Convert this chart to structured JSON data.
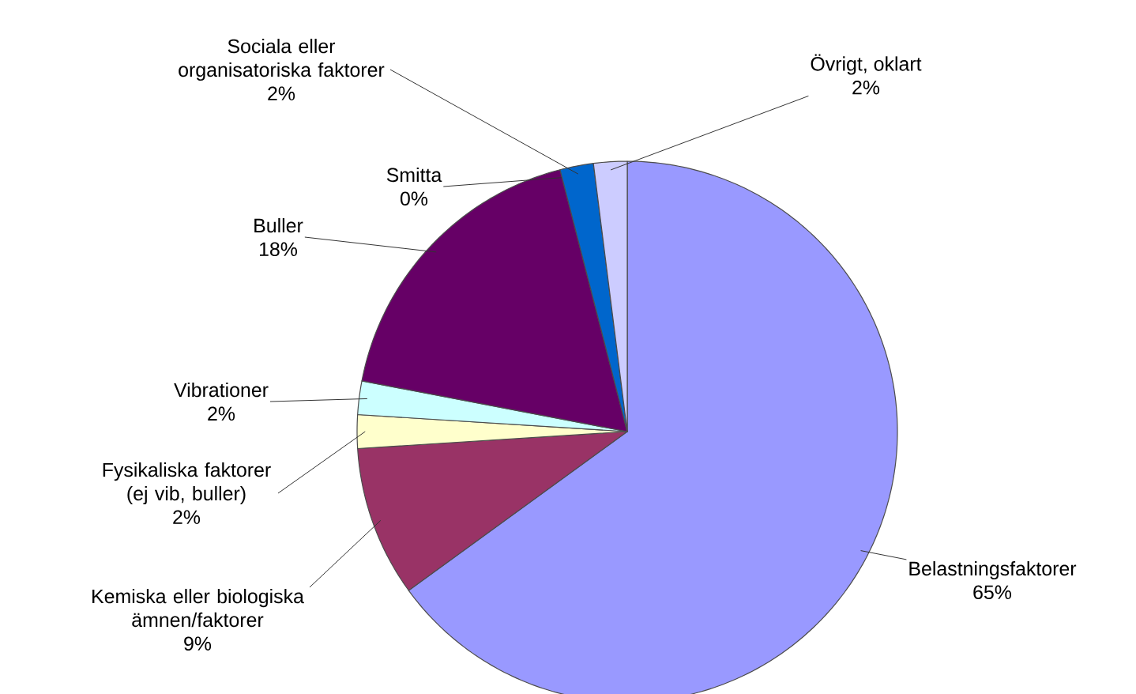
{
  "chart_data": {
    "type": "pie",
    "categories": [
      "Belastningsfaktorer",
      "Kemiska eller biologiska ämnen/faktorer",
      "Fysikaliska faktorer (ej vib, buller)",
      "Vibrationer",
      "Buller",
      "Smitta",
      "Sociala eller organisatoriska faktorer",
      "Övrigt, oklart"
    ],
    "values": [
      65,
      9,
      2,
      2,
      18,
      0,
      2,
      2
    ],
    "value_labels": [
      "65%",
      "9%",
      "2%",
      "2%",
      "18%",
      "0%",
      "2%",
      "2%"
    ],
    "colors": [
      "#9999ff",
      "#993366",
      "#ffffcc",
      "#ccffff",
      "#660066",
      "#ff8080",
      "#0066cc",
      "#ccccff"
    ]
  }
}
